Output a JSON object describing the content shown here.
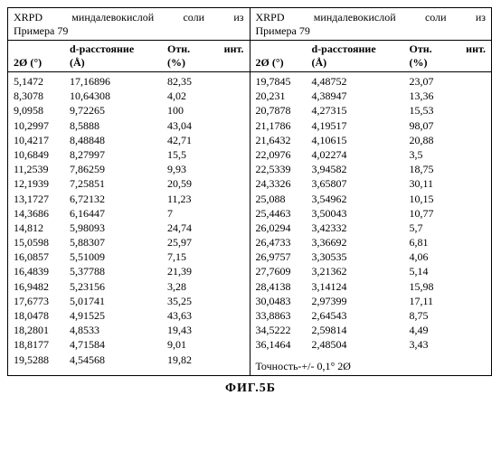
{
  "title_line1": "XRPD миндалевокислой соли из",
  "title_line2": "Примера 79",
  "headers": {
    "c1": "2Ø (°)",
    "c2": "d-расстояние (Å)",
    "c3": "Отн. инт. (%)"
  },
  "header_top": {
    "c2": "d-расстояние",
    "c3a": "Отн.",
    "c3b": "инт."
  },
  "header_bot": {
    "c1": "2Ø (°)",
    "c2": "(Å)",
    "c3": "(%)"
  },
  "left_rows": [
    [
      "5,1472",
      "17,16896",
      "82,35"
    ],
    [
      "8,3078",
      "10,64308",
      "4,02"
    ],
    [
      "9,0958",
      "9,72265",
      "100"
    ],
    [
      "10,2997",
      "8,5888",
      "43,04"
    ],
    [
      "10,4217",
      "8,48848",
      "42,71"
    ],
    [
      "10,6849",
      "8,27997",
      "15,5"
    ],
    [
      "11,2539",
      "7,86259",
      "9,93"
    ],
    [
      "12,1939",
      "7,25851",
      "20,59"
    ],
    [
      "13,1727",
      "6,72132",
      "11,23"
    ],
    [
      "14,3686",
      "6,16447",
      "7"
    ],
    [
      "14,812",
      "5,98093",
      "24,74"
    ],
    [
      "15,0598",
      "5,88307",
      "25,97"
    ],
    [
      "16,0857",
      "5,51009",
      "7,15"
    ],
    [
      "16,4839",
      "5,37788",
      "21,39"
    ],
    [
      "16,9482",
      "5,23156",
      "3,28"
    ],
    [
      "17,6773",
      "5,01741",
      "35,25"
    ],
    [
      "18,0478",
      "4,91525",
      "43,63"
    ],
    [
      "18,2801",
      "4,8533",
      "19,43"
    ],
    [
      "18,8177",
      "4,71584",
      "9,01"
    ],
    [
      "19,5288",
      "4,54568",
      "19,82"
    ]
  ],
  "right_rows": [
    [
      "19,7845",
      "4,48752",
      "23,07"
    ],
    [
      "20,231",
      "4,38947",
      "13,36"
    ],
    [
      "20,7878",
      "4,27315",
      "15,53"
    ],
    [
      "21,1786",
      "4,19517",
      "98,07"
    ],
    [
      "21,6432",
      "4,10615",
      "20,88"
    ],
    [
      "22,0976",
      "4,02274",
      "3,5"
    ],
    [
      "22,5339",
      "3,94582",
      "18,75"
    ],
    [
      "24,3326",
      "3,65807",
      "30,11"
    ],
    [
      "25,088",
      "3,54962",
      "10,15"
    ],
    [
      "25,4463",
      "3,50043",
      "10,77"
    ],
    [
      "26,0294",
      "3,42332",
      "5,7"
    ],
    [
      "26,4733",
      "3,36692",
      "6,81"
    ],
    [
      "26,9757",
      "3,30535",
      "4,06"
    ],
    [
      "27,7609",
      "3,21362",
      "5,14"
    ],
    [
      "28,4138",
      "3,14124",
      "15,98"
    ],
    [
      "30,0483",
      "2,97399",
      "17,11"
    ],
    [
      "33,8863",
      "2,64543",
      "8,75"
    ],
    [
      "34,5222",
      "2,59814",
      "4,49"
    ],
    [
      "36,1464",
      "2,48504",
      "3,43"
    ]
  ],
  "footnote": "Точность-+/- 0,1° 2Ø",
  "figure_label": "ФИГ.5Б"
}
